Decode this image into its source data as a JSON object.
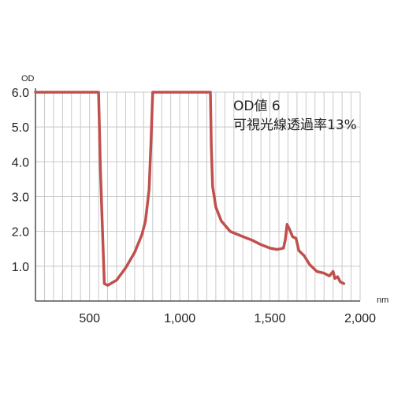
{
  "chart_data": {
    "type": "line",
    "title": "",
    "xlabel": "nm",
    "ylabel": "OD",
    "xlim": [
      200,
      2000
    ],
    "ylim": [
      0,
      6.0
    ],
    "x_ticks": [
      500,
      1000,
      1500,
      2000
    ],
    "x_tick_labels": [
      "500",
      "1,000",
      "1,500",
      "2,000"
    ],
    "y_ticks": [
      1.0,
      2.0,
      3.0,
      4.0,
      5.0,
      6.0
    ],
    "y_tick_labels": [
      "1.0",
      "2.0",
      "3.0",
      "4.0",
      "5.0",
      "6.0"
    ],
    "grid": true,
    "annotations": [
      "OD値 6",
      "可視光線透過率13%"
    ],
    "series": [
      {
        "color": "#c0504d",
        "points": [
          [
            200,
            6.0
          ],
          [
            550,
            6.0
          ],
          [
            560,
            3.8
          ],
          [
            572,
            2.0
          ],
          [
            582,
            0.5
          ],
          [
            600,
            0.45
          ],
          [
            650,
            0.6
          ],
          [
            700,
            0.95
          ],
          [
            750,
            1.4
          ],
          [
            790,
            1.9
          ],
          [
            810,
            2.3
          ],
          [
            830,
            3.2
          ],
          [
            840,
            4.5
          ],
          [
            850,
            6.0
          ],
          [
            1170,
            6.0
          ],
          [
            1175,
            4.4
          ],
          [
            1182,
            3.3
          ],
          [
            1200,
            2.7
          ],
          [
            1230,
            2.3
          ],
          [
            1280,
            2.0
          ],
          [
            1350,
            1.85
          ],
          [
            1400,
            1.75
          ],
          [
            1450,
            1.62
          ],
          [
            1500,
            1.52
          ],
          [
            1540,
            1.48
          ],
          [
            1575,
            1.52
          ],
          [
            1585,
            1.75
          ],
          [
            1595,
            2.2
          ],
          [
            1610,
            2.05
          ],
          [
            1625,
            1.85
          ],
          [
            1645,
            1.8
          ],
          [
            1660,
            1.45
          ],
          [
            1690,
            1.3
          ],
          [
            1720,
            1.05
          ],
          [
            1760,
            0.85
          ],
          [
            1800,
            0.8
          ],
          [
            1830,
            0.72
          ],
          [
            1850,
            0.85
          ],
          [
            1860,
            0.65
          ],
          [
            1875,
            0.7
          ],
          [
            1890,
            0.55
          ],
          [
            1910,
            0.5
          ]
        ]
      }
    ]
  }
}
